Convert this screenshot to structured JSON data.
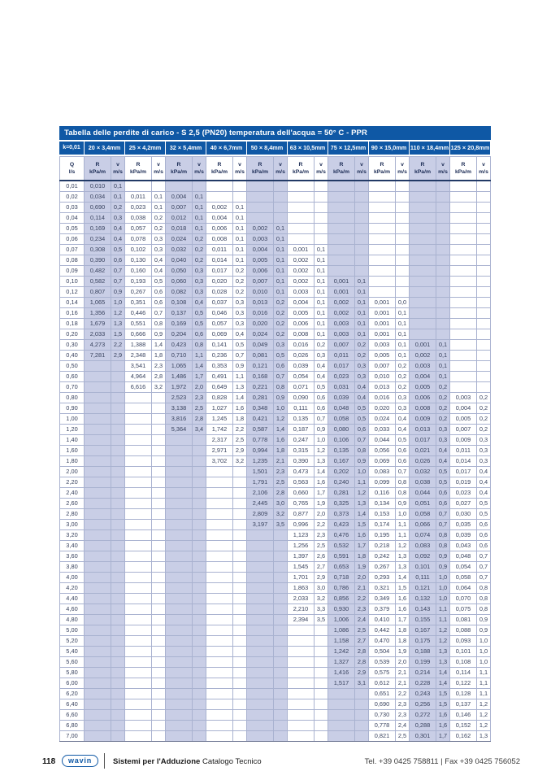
{
  "table": {
    "title": "Tabella delle perdite di carico  - S 2,5 (PN20) temperatura dell'acqua = 50° C - PPR",
    "k_label": "k=0,01",
    "sizes": [
      "20 × 3,4mm",
      "25 × 4,2mm",
      "32 × 5,4mm",
      "40 × 6,7mm",
      "50 × 8,4mm",
      "63 × 10,5mm",
      "75 × 12,5mm",
      "90 × 15,0mm",
      "110 × 18,4mm",
      "125 × 20,8mm"
    ],
    "q_header_top": "Q",
    "q_header_bottom": "l/s",
    "r_header_top": "R",
    "r_header_bottom": "kPa/m",
    "v_header_top": "v",
    "v_header_bottom": "m/s",
    "colors": {
      "header_blue": "#0f58a5",
      "column_shade": "#c9cee6",
      "grid_line": "#a9b2d0",
      "header_underline": "#223a66"
    },
    "rows": [
      [
        "0,01",
        "0,010",
        "0,1",
        "",
        "",
        "",
        "",
        "",
        "",
        "",
        "",
        "",
        "",
        "",
        "",
        "",
        "",
        "",
        "",
        "",
        ""
      ],
      [
        "0,02",
        "0,034",
        "0,1",
        "0,011",
        "0,1",
        "0,004",
        "0,1",
        "",
        "",
        "",
        "",
        "",
        "",
        "",
        "",
        "",
        "",
        "",
        "",
        "",
        ""
      ],
      [
        "0,03",
        "0,690",
        "0,2",
        "0,023",
        "0,1",
        "0,007",
        "0,1",
        "0,002",
        "0,1",
        "",
        "",
        "",
        "",
        "",
        "",
        "",
        "",
        "",
        "",
        "",
        ""
      ],
      [
        "0,04",
        "0,114",
        "0,3",
        "0,038",
        "0,2",
        "0,012",
        "0,1",
        "0,004",
        "0,1",
        "",
        "",
        "",
        "",
        "",
        "",
        "",
        "",
        "",
        "",
        "",
        ""
      ],
      [
        "0,05",
        "0,169",
        "0,4",
        "0,057",
        "0,2",
        "0,018",
        "0,1",
        "0,006",
        "0,1",
        "0,002",
        "0,1",
        "",
        "",
        "",
        "",
        "",
        "",
        "",
        "",
        "",
        ""
      ],
      [
        "0,06",
        "0,234",
        "0,4",
        "0,078",
        "0,3",
        "0,024",
        "0,2",
        "0,008",
        "0,1",
        "0,003",
        "0,1",
        "",
        "",
        "",
        "",
        "",
        "",
        "",
        "",
        "",
        ""
      ],
      [
        "0,07",
        "0,308",
        "0,5",
        "0,102",
        "0,3",
        "0,032",
        "0,2",
        "0,011",
        "0,1",
        "0,004",
        "0,1",
        "0,001",
        "0,1",
        "",
        "",
        "",
        "",
        "",
        "",
        "",
        ""
      ],
      [
        "0,08",
        "0,390",
        "0,6",
        "0,130",
        "0,4",
        "0,040",
        "0,2",
        "0,014",
        "0,1",
        "0,005",
        "0,1",
        "0,002",
        "0,1",
        "",
        "",
        "",
        "",
        "",
        "",
        "",
        ""
      ],
      [
        "0,09",
        "0,482",
        "0,7",
        "0,160",
        "0,4",
        "0,050",
        "0,3",
        "0,017",
        "0,2",
        "0,006",
        "0,1",
        "0,002",
        "0,1",
        "",
        "",
        "",
        "",
        "",
        "",
        "",
        ""
      ],
      [
        "0,10",
        "0,582",
        "0,7",
        "0,193",
        "0,5",
        "0,060",
        "0,3",
        "0,020",
        "0,2",
        "0,007",
        "0,1",
        "0,002",
        "0,1",
        "0,001",
        "0,1",
        "",
        "",
        "",
        "",
        "",
        ""
      ],
      [
        "0,12",
        "0,807",
        "0,9",
        "0,267",
        "0,6",
        "0,082",
        "0,3",
        "0,028",
        "0,2",
        "0,010",
        "0,1",
        "0,003",
        "0,1",
        "0,001",
        "0,1",
        "",
        "",
        "",
        "",
        "",
        ""
      ],
      [
        "0,14",
        "1,065",
        "1,0",
        "0,351",
        "0,6",
        "0,108",
        "0,4",
        "0,037",
        "0,3",
        "0,013",
        "0,2",
        "0,004",
        "0,1",
        "0,002",
        "0,1",
        "0,001",
        "0,0",
        "",
        "",
        "",
        ""
      ],
      [
        "0,16",
        "1,356",
        "1,2",
        "0,446",
        "0,7",
        "0,137",
        "0,5",
        "0,046",
        "0,3",
        "0,016",
        "0,2",
        "0,005",
        "0,1",
        "0,002",
        "0,1",
        "0,001",
        "0,1",
        "",
        "",
        "",
        ""
      ],
      [
        "0,18",
        "1,679",
        "1,3",
        "0,551",
        "0,8",
        "0,169",
        "0,5",
        "0,057",
        "0,3",
        "0,020",
        "0,2",
        "0,006",
        "0,1",
        "0,003",
        "0,1",
        "0,001",
        "0,1",
        "",
        "",
        "",
        ""
      ],
      [
        "0,20",
        "2,033",
        "1,5",
        "0,666",
        "0,9",
        "0,204",
        "0,6",
        "0,069",
        "0,4",
        "0,024",
        "0,2",
        "0,008",
        "0,1",
        "0,003",
        "0,1",
        "0,001",
        "0,1",
        "",
        "",
        "",
        ""
      ],
      [
        "0,30",
        "4,273",
        "2,2",
        "1,388",
        "1,4",
        "0,423",
        "0,8",
        "0,141",
        "0,5",
        "0,049",
        "0,3",
        "0,016",
        "0,2",
        "0,007",
        "0,2",
        "0,003",
        "0,1",
        "0,001",
        "0,1",
        "",
        ""
      ],
      [
        "0,40",
        "7,281",
        "2,9",
        "2,348",
        "1,8",
        "0,710",
        "1,1",
        "0,236",
        "0,7",
        "0,081",
        "0,5",
        "0,026",
        "0,3",
        "0,011",
        "0,2",
        "0,005",
        "0,1",
        "0,002",
        "0,1",
        "",
        ""
      ],
      [
        "0,50",
        "",
        "",
        "3,541",
        "2,3",
        "1,065",
        "1,4",
        "0,353",
        "0,9",
        "0,121",
        "0,6",
        "0,039",
        "0,4",
        "0,017",
        "0,3",
        "0,007",
        "0,2",
        "0,003",
        "0,1",
        "",
        ""
      ],
      [
        "0,60",
        "",
        "",
        "4,964",
        "2,8",
        "1,486",
        "1,7",
        "0,491",
        "1,1",
        "0,168",
        "0,7",
        "0,054",
        "0,4",
        "0,023",
        "0,3",
        "0,010",
        "0,2",
        "0,004",
        "0,1",
        "",
        ""
      ],
      [
        "0,70",
        "",
        "",
        "6,616",
        "3,2",
        "1,972",
        "2,0",
        "0,649",
        "1,3",
        "0,221",
        "0,8",
        "0,071",
        "0,5",
        "0,031",
        "0,4",
        "0,013",
        "0,2",
        "0,005",
        "0,2",
        "",
        ""
      ],
      [
        "0,80",
        "",
        "",
        "",
        "",
        "2,523",
        "2,3",
        "0,828",
        "1,4",
        "0,281",
        "0,9",
        "0,090",
        "0,6",
        "0,039",
        "0,4",
        "0,016",
        "0,3",
        "0,006",
        "0,2",
        "0,003",
        "0,2"
      ],
      [
        "0,90",
        "",
        "",
        "",
        "",
        "3,138",
        "2,5",
        "1,027",
        "1,6",
        "0,348",
        "1,0",
        "0,111",
        "0,6",
        "0,048",
        "0,5",
        "0,020",
        "0,3",
        "0,008",
        "0,2",
        "0,004",
        "0,2"
      ],
      [
        "1,00",
        "",
        "",
        "",
        "",
        "3,816",
        "2,8",
        "1,245",
        "1,8",
        "0,421",
        "1,2",
        "0,135",
        "0,7",
        "0,058",
        "0,5",
        "0,024",
        "0,4",
        "0,009",
        "0,2",
        "0,005",
        "0,2"
      ],
      [
        "1,20",
        "",
        "",
        "",
        "",
        "5,364",
        "3,4",
        "1,742",
        "2,2",
        "0,587",
        "1,4",
        "0,187",
        "0,9",
        "0,080",
        "0,6",
        "0,033",
        "0,4",
        "0,013",
        "0,3",
        "0,007",
        "0,2"
      ],
      [
        "1,40",
        "",
        "",
        "",
        "",
        "",
        "",
        "2,317",
        "2,5",
        "0,778",
        "1,6",
        "0,247",
        "1,0",
        "0,106",
        "0,7",
        "0,044",
        "0,5",
        "0,017",
        "0,3",
        "0,009",
        "0,3"
      ],
      [
        "1,60",
        "",
        "",
        "",
        "",
        "",
        "",
        "2,971",
        "2,9",
        "0,994",
        "1,8",
        "0,315",
        "1,2",
        "0,135",
        "0,8",
        "0,056",
        "0,6",
        "0,021",
        "0,4",
        "0,011",
        "0,3"
      ],
      [
        "1,80",
        "",
        "",
        "",
        "",
        "",
        "",
        "3,702",
        "3,2",
        "1,235",
        "2,1",
        "0,390",
        "1,3",
        "0,167",
        "0,9",
        "0,069",
        "0,6",
        "0,026",
        "0,4",
        "0,014",
        "0,3"
      ],
      [
        "2,00",
        "",
        "",
        "",
        "",
        "",
        "",
        "",
        "",
        "1,501",
        "2,3",
        "0,473",
        "1,4",
        "0,202",
        "1,0",
        "0,083",
        "0,7",
        "0,032",
        "0,5",
        "0,017",
        "0,4"
      ],
      [
        "2,20",
        "",
        "",
        "",
        "",
        "",
        "",
        "",
        "",
        "1,791",
        "2,5",
        "0,563",
        "1,6",
        "0,240",
        "1,1",
        "0,099",
        "0,8",
        "0,038",
        "0,5",
        "0,019",
        "0,4"
      ],
      [
        "2,40",
        "",
        "",
        "",
        "",
        "",
        "",
        "",
        "",
        "2,106",
        "2,8",
        "0,660",
        "1,7",
        "0,281",
        "1,2",
        "0,116",
        "0,8",
        "0,044",
        "0,6",
        "0,023",
        "0,4"
      ],
      [
        "2,60",
        "",
        "",
        "",
        "",
        "",
        "",
        "",
        "",
        "2,445",
        "3,0",
        "0,765",
        "1,9",
        "0,325",
        "1,3",
        "0,134",
        "0,9",
        "0,051",
        "0,6",
        "0,027",
        "0,5"
      ],
      [
        "2,80",
        "",
        "",
        "",
        "",
        "",
        "",
        "",
        "",
        "2,809",
        "3,2",
        "0,877",
        "2,0",
        "0,373",
        "1,4",
        "0,153",
        "1,0",
        "0,058",
        "0,7",
        "0,030",
        "0,5"
      ],
      [
        "3,00",
        "",
        "",
        "",
        "",
        "",
        "",
        "",
        "",
        "3,197",
        "3,5",
        "0,996",
        "2,2",
        "0,423",
        "1,5",
        "0,174",
        "1,1",
        "0,066",
        "0,7",
        "0,035",
        "0,6"
      ],
      [
        "3,20",
        "",
        "",
        "",
        "",
        "",
        "",
        "",
        "",
        "",
        "",
        "1,123",
        "2,3",
        "0,476",
        "1,6",
        "0,195",
        "1,1",
        "0,074",
        "0,8",
        "0,039",
        "0,6"
      ],
      [
        "3,40",
        "",
        "",
        "",
        "",
        "",
        "",
        "",
        "",
        "",
        "",
        "1,256",
        "2,5",
        "0,532",
        "1,7",
        "0,218",
        "1,2",
        "0,083",
        "0,8",
        "0,043",
        "0,6"
      ],
      [
        "3,60",
        "",
        "",
        "",
        "",
        "",
        "",
        "",
        "",
        "",
        "",
        "1,397",
        "2,6",
        "0,591",
        "1,8",
        "0,242",
        "1,3",
        "0,092",
        "0,9",
        "0,048",
        "0,7"
      ],
      [
        "3,80",
        "",
        "",
        "",
        "",
        "",
        "",
        "",
        "",
        "",
        "",
        "1,545",
        "2,7",
        "0,653",
        "1,9",
        "0,267",
        "1,3",
        "0,101",
        "0,9",
        "0,054",
        "0,7"
      ],
      [
        "4,00",
        "",
        "",
        "",
        "",
        "",
        "",
        "",
        "",
        "",
        "",
        "1,701",
        "2,9",
        "0,718",
        "2,0",
        "0,293",
        "1,4",
        "0,111",
        "1,0",
        "0,058",
        "0,7"
      ],
      [
        "4,20",
        "",
        "",
        "",
        "",
        "",
        "",
        "",
        "",
        "",
        "",
        "1,863",
        "3,0",
        "0,786",
        "2,1",
        "0,321",
        "1,5",
        "0,121",
        "1,0",
        "0,064",
        "0,8"
      ],
      [
        "4,40",
        "",
        "",
        "",
        "",
        "",
        "",
        "",
        "",
        "",
        "",
        "2,033",
        "3,2",
        "0,856",
        "2,2",
        "0,349",
        "1,6",
        "0,132",
        "1,0",
        "0,070",
        "0,8"
      ],
      [
        "4,60",
        "",
        "",
        "",
        "",
        "",
        "",
        "",
        "",
        "",
        "",
        "2,210",
        "3,3",
        "0,930",
        "2,3",
        "0,379",
        "1,6",
        "0,143",
        "1,1",
        "0,075",
        "0,8"
      ],
      [
        "4,80",
        "",
        "",
        "",
        "",
        "",
        "",
        "",
        "",
        "",
        "",
        "2,394",
        "3,5",
        "1,006",
        "2,4",
        "0,410",
        "1,7",
        "0,155",
        "1,1",
        "0,081",
        "0,9"
      ],
      [
        "5,00",
        "",
        "",
        "",
        "",
        "",
        "",
        "",
        "",
        "",
        "",
        "",
        "",
        "1,086",
        "2,5",
        "0,442",
        "1,8",
        "0,167",
        "1,2",
        "0,088",
        "0,9"
      ],
      [
        "5,20",
        "",
        "",
        "",
        "",
        "",
        "",
        "",
        "",
        "",
        "",
        "",
        "",
        "1,158",
        "2,7",
        "0,470",
        "1,8",
        "0,175",
        "1,2",
        "0,093",
        "1,0"
      ],
      [
        "5,40",
        "",
        "",
        "",
        "",
        "",
        "",
        "",
        "",
        "",
        "",
        "",
        "",
        "1,242",
        "2,8",
        "0,504",
        "1,9",
        "0,188",
        "1,3",
        "0,101",
        "1,0"
      ],
      [
        "5,60",
        "",
        "",
        "",
        "",
        "",
        "",
        "",
        "",
        "",
        "",
        "",
        "",
        "1,327",
        "2,8",
        "0,539",
        "2,0",
        "0,199",
        "1,3",
        "0,108",
        "1,0"
      ],
      [
        "5,80",
        "",
        "",
        "",
        "",
        "",
        "",
        "",
        "",
        "",
        "",
        "",
        "",
        "1,416",
        "2,9",
        "0,575",
        "2,1",
        "0,214",
        "1,4",
        "0,114",
        "1,1"
      ],
      [
        "6,00",
        "",
        "",
        "",
        "",
        "",
        "",
        "",
        "",
        "",
        "",
        "",
        "",
        "1,517",
        "3,1",
        "0,612",
        "2,1",
        "0,228",
        "1,4",
        "0,122",
        "1,1"
      ],
      [
        "6,20",
        "",
        "",
        "",
        "",
        "",
        "",
        "",
        "",
        "",
        "",
        "",
        "",
        "",
        "",
        "0,651",
        "2,2",
        "0,243",
        "1,5",
        "0,128",
        "1,1"
      ],
      [
        "6,40",
        "",
        "",
        "",
        "",
        "",
        "",
        "",
        "",
        "",
        "",
        "",
        "",
        "",
        "",
        "0,690",
        "2,3",
        "0,256",
        "1,5",
        "0,137",
        "1,2"
      ],
      [
        "6,60",
        "",
        "",
        "",
        "",
        "",
        "",
        "",
        "",
        "",
        "",
        "",
        "",
        "",
        "",
        "0,730",
        "2,3",
        "0,272",
        "1,6",
        "0,146",
        "1,2"
      ],
      [
        "6,80",
        "",
        "",
        "",
        "",
        "",
        "",
        "",
        "",
        "",
        "",
        "",
        "",
        "",
        "",
        "0,778",
        "2,4",
        "0,288",
        "1,6",
        "0,152",
        "1,2"
      ],
      [
        "7,00",
        "",
        "",
        "",
        "",
        "",
        "",
        "",
        "",
        "",
        "",
        "",
        "",
        "",
        "",
        "0,821",
        "2,5",
        "0,301",
        "1,7",
        "0,162",
        "1,3"
      ]
    ]
  },
  "footer": {
    "page_number": "118",
    "brand": "wavin",
    "left_bold": "Sistemi per l'Adduzione",
    "left_regular": " Catalogo Tecnico",
    "right": "Tel. +39 0425 758811  |  Fax +39 0425 756052"
  }
}
